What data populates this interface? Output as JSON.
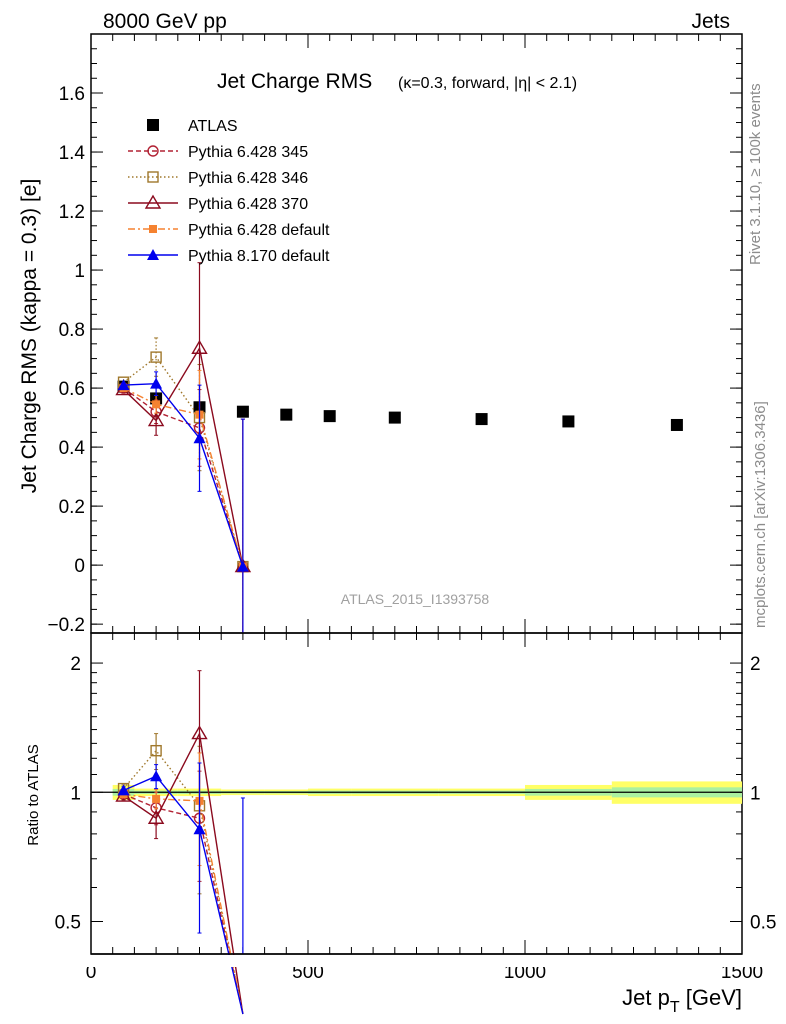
{
  "header": {
    "left": "8000 GeV pp",
    "right": "Jets"
  },
  "side_labels": {
    "rivet": "Rivet 3.1.10, ≥ 100k events",
    "mcplots": "mcplots.cern.ch [arXiv:1306.3436]"
  },
  "chart_data": [
    {
      "type": "line",
      "panel": "main",
      "title": "Jet Charge RMS",
      "subtitle": "(κ=0.3, forward, |η| < 2.1)",
      "watermark": "ATLAS_2015_I1393758",
      "ylabel": "Jet Charge RMS (kappa = 0.3) [e]",
      "xlim": [
        0,
        1500
      ],
      "ylim": [
        -0.23,
        1.8
      ],
      "yticks": [
        -0.2,
        0,
        0.2,
        0.4,
        0.6,
        0.8,
        1,
        1.2,
        1.4,
        1.6
      ],
      "ytick_labels": [
        "−0.2",
        "0",
        "0.2",
        "0.4",
        "0.6",
        "0.8",
        "1",
        "1.2",
        "1.4",
        "1.6"
      ],
      "grid": false,
      "legend_position": "top-left",
      "series": [
        {
          "name": "ATLAS",
          "color": "#000000",
          "marker": "square-filled",
          "line": "none",
          "x": [
            75,
            150,
            250,
            350,
            450,
            550,
            700,
            900,
            1100,
            1350
          ],
          "y": [
            0.605,
            0.565,
            0.535,
            0.52,
            0.51,
            0.505,
            0.5,
            0.495,
            0.487,
            0.475
          ],
          "err": [
            0.005,
            0.005,
            0.005,
            0.005,
            0.005,
            0.005,
            0.005,
            0.005,
            0.005,
            0.005
          ]
        },
        {
          "name": "Pythia 6.428 345",
          "color": "#b22234",
          "marker": "circle-open",
          "line": "dashed",
          "x": [
            75,
            150,
            250,
            350
          ],
          "y": [
            0.6,
            0.52,
            0.465,
            -0.005
          ],
          "err": [
            0.01,
            0.04,
            0.13,
            0.5
          ]
        },
        {
          "name": "Pythia 6.428 346",
          "color": "#a0782c",
          "marker": "square-open",
          "line": "dotted",
          "x": [
            75,
            150,
            250,
            350
          ],
          "y": [
            0.62,
            0.705,
            0.5,
            -0.005
          ],
          "err": [
            0.01,
            0.065,
            0.18,
            0.5
          ]
        },
        {
          "name": "Pythia 6.428 370",
          "color": "#8b0a1e",
          "marker": "triangle-open",
          "line": "solid",
          "x": [
            75,
            150,
            250,
            350
          ],
          "y": [
            0.595,
            0.49,
            0.735,
            -0.005
          ],
          "err": [
            0.01,
            0.05,
            0.29,
            0.5
          ]
        },
        {
          "name": "Pythia 6.428 default",
          "color": "#f58230",
          "marker": "square-filled-small",
          "line": "dashdot",
          "x": [
            75,
            150,
            250,
            350
          ],
          "y": [
            0.6,
            0.545,
            0.51,
            -0.005
          ],
          "err": [
            0.01,
            0.03,
            0.15,
            0.5
          ]
        },
        {
          "name": "Pythia 8.170 default",
          "color": "#0000ee",
          "marker": "triangle-filled",
          "line": "solid",
          "x": [
            75,
            150,
            250,
            350
          ],
          "y": [
            0.61,
            0.615,
            0.43,
            -0.005
          ],
          "err": [
            0.01,
            0.04,
            0.18,
            0.5
          ]
        }
      ]
    },
    {
      "type": "line",
      "panel": "ratio",
      "ylabel": "Ratio to ATLAS",
      "xlabel": "Jet p",
      "xlabel_sub": "T",
      "xlabel_unit": " [GeV]",
      "xlim": [
        0,
        1500
      ],
      "xticks": [
        0,
        500,
        1000,
        1500
      ],
      "xtick_labels": [
        "0",
        "500",
        "1000",
        "1500"
      ],
      "ylim": [
        0.42,
        2.35
      ],
      "yscale": "log",
      "yticks": [
        0.5,
        1,
        2
      ],
      "ytick_labels": [
        "0.5",
        "1",
        "2"
      ],
      "band": {
        "color": "#ffff66",
        "inner_color": "#aaf0a0",
        "bins": [
          [
            50,
            100,
            0.04
          ],
          [
            100,
            200,
            0.02
          ],
          [
            200,
            300,
            0.02
          ],
          [
            300,
            400,
            0.015
          ],
          [
            400,
            500,
            0.015
          ],
          [
            500,
            600,
            0.02
          ],
          [
            600,
            800,
            0.02
          ],
          [
            800,
            1000,
            0.02
          ],
          [
            1000,
            1200,
            0.04
          ],
          [
            1200,
            1500,
            0.06
          ]
        ]
      },
      "series": [
        {
          "name": "Pythia 6.428 345",
          "x": [
            75,
            150,
            250,
            350
          ],
          "y": [
            0.99,
            0.92,
            0.87,
            0.0
          ],
          "err": [
            0.02,
            0.08,
            0.25,
            0.9
          ]
        },
        {
          "name": "Pythia 6.428 346",
          "x": [
            75,
            150,
            250,
            350
          ],
          "y": [
            1.02,
            1.25,
            0.93,
            0.0
          ],
          "err": [
            0.02,
            0.12,
            0.35,
            0.9
          ]
        },
        {
          "name": "Pythia 6.428 370",
          "x": [
            75,
            150,
            250,
            350
          ],
          "y": [
            0.98,
            0.87,
            1.37,
            0.0
          ],
          "err": [
            0.02,
            0.09,
            0.55,
            0.9
          ]
        },
        {
          "name": "Pythia 6.428 default",
          "x": [
            75,
            150,
            250,
            350
          ],
          "y": [
            0.99,
            0.965,
            0.955,
            0.0
          ],
          "err": [
            0.02,
            0.05,
            0.28,
            0.9
          ]
        },
        {
          "name": "Pythia 8.170 default",
          "x": [
            75,
            150,
            250,
            350
          ],
          "y": [
            1.01,
            1.09,
            0.82,
            0.0
          ],
          "err": [
            0.02,
            0.07,
            0.35,
            0.9
          ]
        }
      ]
    }
  ]
}
